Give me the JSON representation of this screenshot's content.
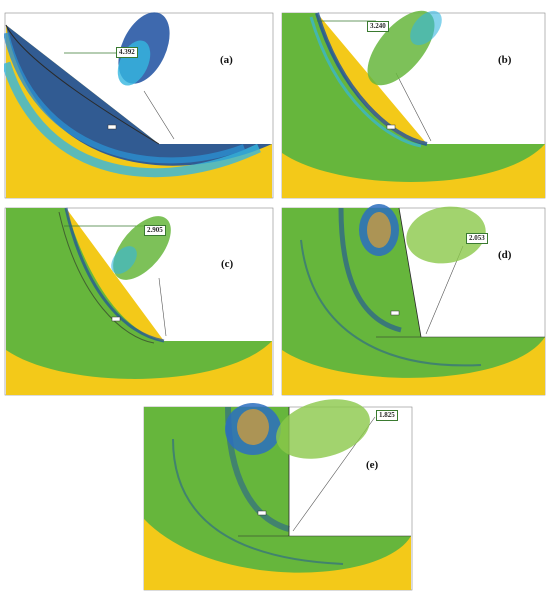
{
  "colors": {
    "soil": "#f3c919",
    "slip_green": "#66b63c",
    "slip_blue_dark": "#1c4fa0",
    "slip_blue_light": "#34b6e0",
    "outline": "#2a2a2a",
    "frame": "#777777"
  },
  "panels": [
    {
      "label": "(a)",
      "factor_of_safety": "4.392"
    },
    {
      "label": "(b)",
      "factor_of_safety": "3.240"
    },
    {
      "label": "(c)",
      "factor_of_safety": "2.905"
    },
    {
      "label": "(d)",
      "factor_of_safety": "2.053"
    },
    {
      "label": "(e)",
      "factor_of_safety": "1.825"
    }
  ]
}
